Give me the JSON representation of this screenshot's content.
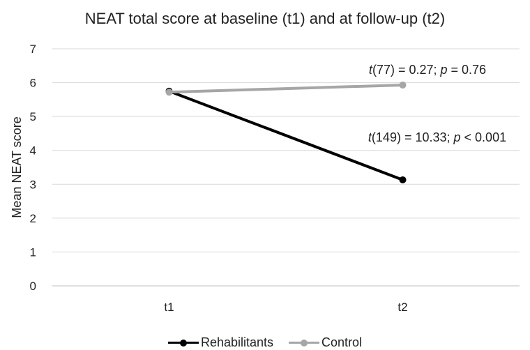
{
  "chart_data": {
    "type": "line",
    "title": "NEAT total score at baseline (t1) and at follow-up (t2)",
    "xlabel": "",
    "ylabel": "Mean NEAT score",
    "categories": [
      "t1",
      "t2"
    ],
    "ylim": [
      0,
      7
    ],
    "yticks": [
      0,
      1,
      2,
      3,
      4,
      5,
      6,
      7
    ],
    "grid": true,
    "legend_position": "bottom",
    "series": [
      {
        "name": "Rehabilitants",
        "values": [
          5.75,
          3.13
        ],
        "color": "#000000"
      },
      {
        "name": "Control",
        "values": [
          5.72,
          5.93
        ],
        "color": "#a6a6a6"
      }
    ],
    "annotations": [
      {
        "text_italic": "t",
        "text": "(77) = 0.27; ",
        "p_italic": "p",
        "rest": " = 0.76"
      },
      {
        "text_italic": "t",
        "text": "(149) = 10.33; ",
        "p_italic": "p",
        "rest": " < 0.001"
      }
    ]
  }
}
